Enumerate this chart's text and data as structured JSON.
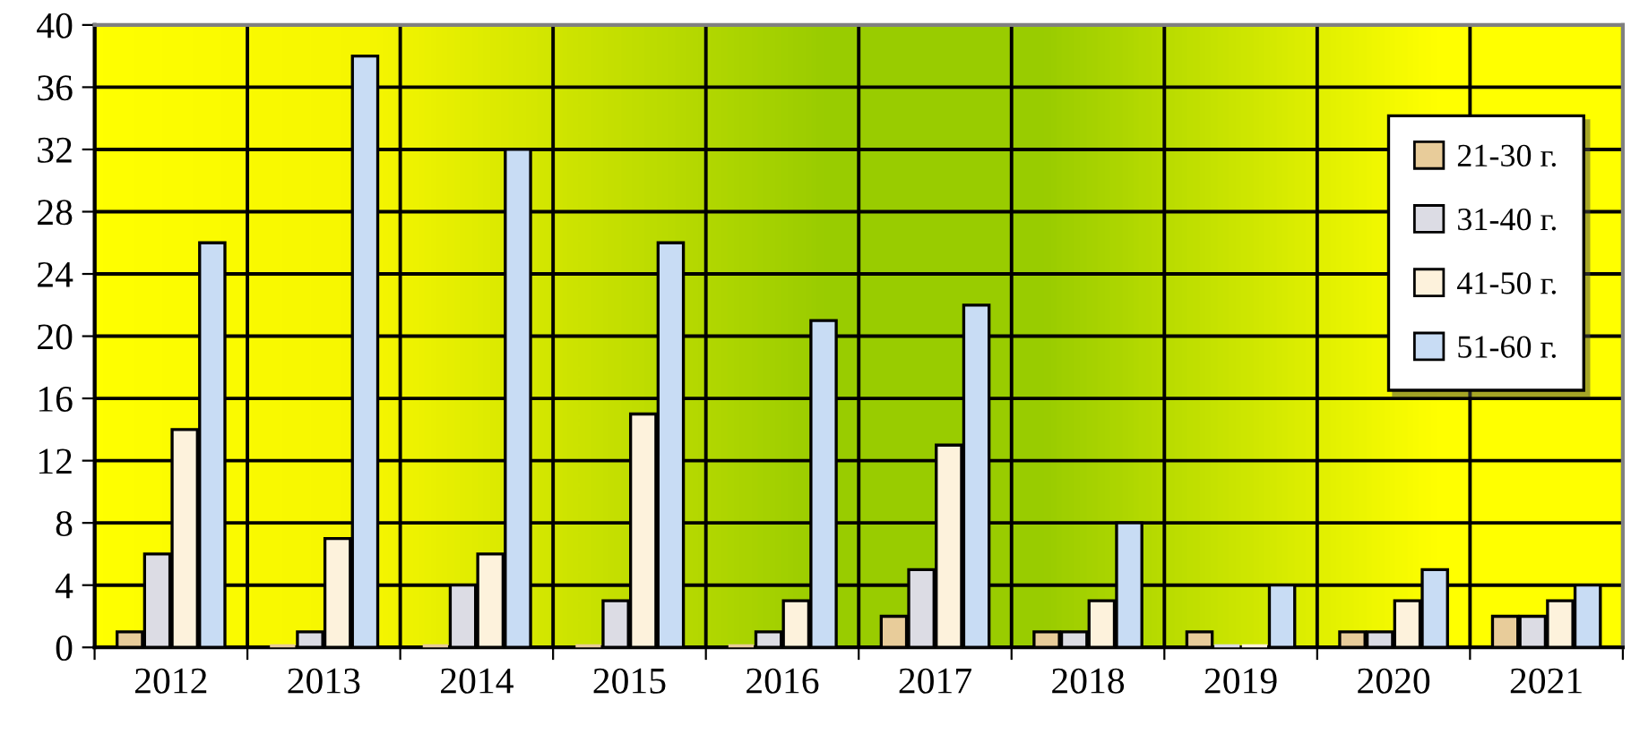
{
  "chart_data": {
    "type": "bar",
    "categories": [
      "2012",
      "2013",
      "2014",
      "2015",
      "2016",
      "2017",
      "2018",
      "2019",
      "2020",
      "2021"
    ],
    "series": [
      {
        "name": "21-30 г.",
        "color": "#e8cc9a",
        "values": [
          1,
          0,
          0,
          0,
          0,
          2,
          1,
          1,
          1,
          2
        ]
      },
      {
        "name": "31-40 г.",
        "color": "#dcdce4",
        "values": [
          6,
          1,
          4,
          3,
          1,
          5,
          1,
          0,
          1,
          2
        ]
      },
      {
        "name": "41-50 г.",
        "color": "#fdf2dc",
        "values": [
          14,
          7,
          6,
          15,
          3,
          13,
          3,
          0,
          3,
          3
        ]
      },
      {
        "name": "51-60 г.",
        "color": "#c8dcf4",
        "values": [
          26,
          38,
          32,
          26,
          21,
          22,
          8,
          4,
          5,
          4
        ]
      }
    ],
    "ylim": [
      0,
      40
    ],
    "yticks": [
      0,
      4,
      8,
      12,
      16,
      20,
      24,
      28,
      32,
      36,
      40
    ],
    "grid": true,
    "legend": "top right"
  }
}
